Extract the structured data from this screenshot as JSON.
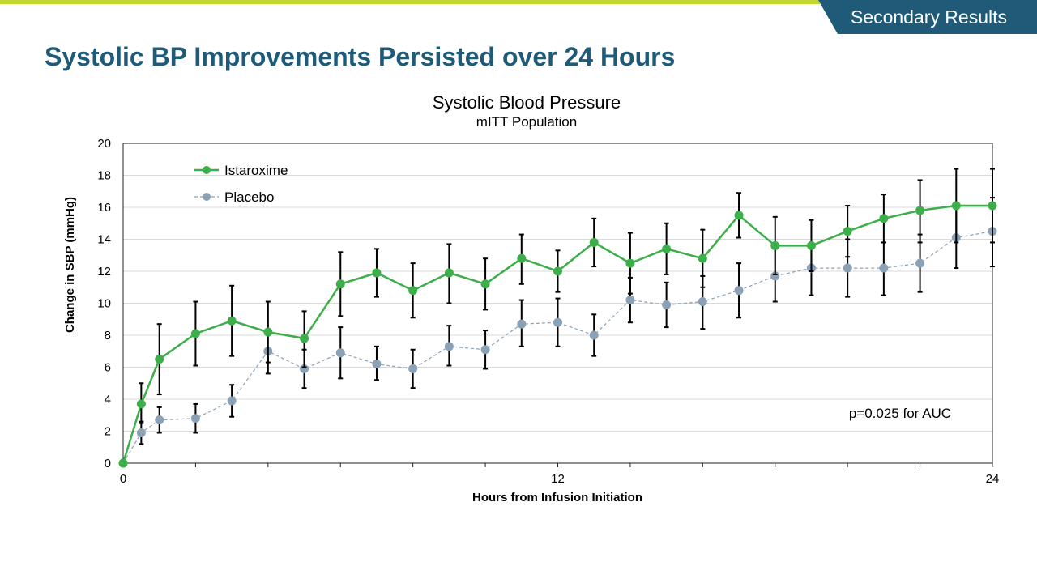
{
  "header": {
    "badge": "Secondary Results",
    "title": "Systolic BP Improvements Persisted over 24 Hours"
  },
  "colors": {
    "accent_bar": "#c4d72e",
    "brand": "#1f5a78",
    "istaroxime": "#3cae4a",
    "placebo": "#8aa1b6"
  },
  "chart_data": {
    "type": "line",
    "title": "Systolic Blood Pressure",
    "subtitle": "mITT Population",
    "xlabel": "Hours from Infusion Initiation",
    "ylabel": "Change in SBP (mmHg)",
    "xlim": [
      0,
      24
    ],
    "ylim": [
      0,
      20
    ],
    "x_ticks": [
      0,
      12,
      24
    ],
    "y_ticks": [
      0,
      2,
      4,
      6,
      8,
      10,
      12,
      14,
      16,
      18,
      20
    ],
    "grid": "horizontal",
    "legend_position": "top-left",
    "annotation": "p=0.025 for AUC",
    "x": [
      0,
      0.5,
      1,
      2,
      3,
      4,
      5,
      6,
      7,
      8,
      9,
      10,
      11,
      12,
      13,
      14,
      15,
      16,
      17,
      18,
      19,
      20,
      21,
      22,
      23,
      24
    ],
    "series": [
      {
        "name": "Istaroxime",
        "color": "#3cae4a",
        "line_style": "solid",
        "values": [
          0,
          3.7,
          6.5,
          8.1,
          8.9,
          8.2,
          7.8,
          11.2,
          11.9,
          10.8,
          11.9,
          11.2,
          12.8,
          12.0,
          13.8,
          12.5,
          13.4,
          12.8,
          15.5,
          13.6,
          13.6,
          14.5,
          15.3,
          15.8,
          16.1,
          16.1
        ],
        "error_low": [
          0,
          2.5,
          4.3,
          6.1,
          6.7,
          6.3,
          6.0,
          9.2,
          10.4,
          9.1,
          10.0,
          9.6,
          11.2,
          10.7,
          12.3,
          10.6,
          11.8,
          11.0,
          14.1,
          11.8,
          12.0,
          12.9,
          13.8,
          13.8,
          13.8,
          13.8
        ],
        "error_high": [
          0,
          5.0,
          8.7,
          10.1,
          11.1,
          10.1,
          9.5,
          13.2,
          13.4,
          12.5,
          13.7,
          12.8,
          14.3,
          13.3,
          15.3,
          14.4,
          15.0,
          14.6,
          16.9,
          15.4,
          15.2,
          16.1,
          16.8,
          17.7,
          18.4,
          18.4
        ]
      },
      {
        "name": "Placebo",
        "color": "#8aa1b6",
        "line_style": "dashed",
        "values": [
          0,
          1.9,
          2.7,
          2.8,
          3.9,
          7.0,
          5.9,
          6.9,
          6.2,
          5.9,
          7.3,
          7.1,
          8.7,
          8.8,
          8.0,
          10.2,
          9.9,
          10.1,
          10.8,
          11.7,
          12.2,
          12.2,
          12.2,
          12.5,
          14.1,
          14.5
        ],
        "error_low": [
          0,
          1.2,
          1.9,
          1.9,
          2.9,
          5.6,
          4.7,
          5.3,
          5.2,
          4.7,
          6.1,
          5.9,
          7.3,
          7.3,
          6.7,
          8.8,
          8.5,
          8.4,
          9.1,
          10.1,
          10.5,
          10.4,
          10.5,
          10.7,
          12.2,
          12.3
        ],
        "error_high": [
          0,
          2.6,
          3.5,
          3.7,
          4.9,
          7.1,
          7.1,
          8.5,
          7.3,
          7.1,
          8.6,
          8.3,
          10.2,
          10.3,
          9.3,
          11.6,
          11.3,
          11.7,
          12.5,
          13.4,
          13.8,
          14.0,
          13.8,
          14.3,
          15.9,
          16.6
        ]
      }
    ]
  }
}
